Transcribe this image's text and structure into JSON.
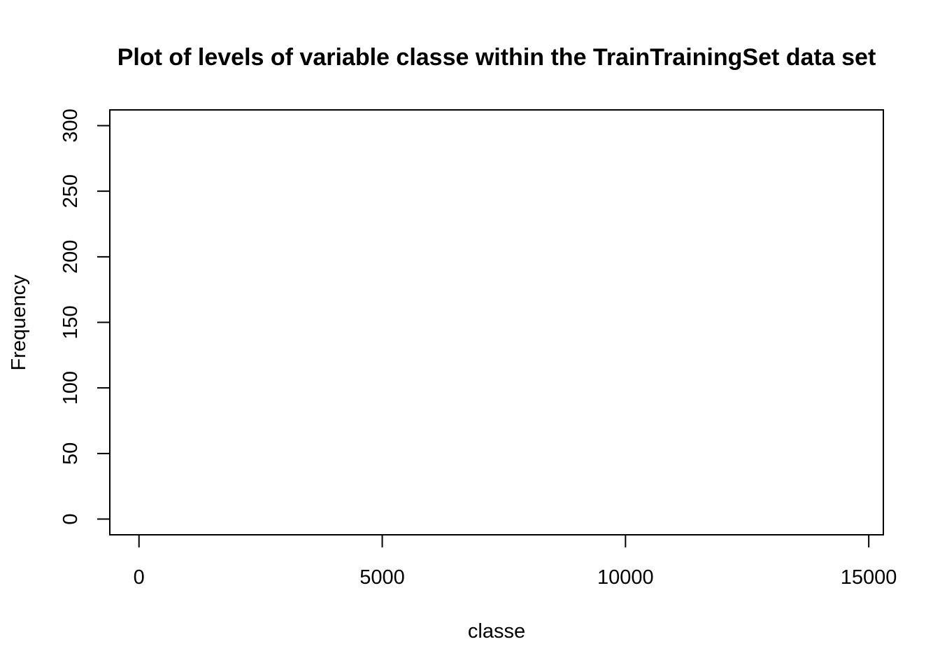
{
  "chart_data": {
    "type": "bar",
    "title": "Plot of levels of variable classe within the TrainTrainingSet data set",
    "xlabel": "classe",
    "ylabel": "Frequency",
    "xlim": [
      -600,
      15300
    ],
    "ylim": [
      -12,
      312
    ],
    "x_ticks": [
      0,
      5000,
      10000,
      15000
    ],
    "x_tick_labels": [
      "0",
      "5000",
      "10000",
      "15000"
    ],
    "y_ticks": [
      0,
      50,
      100,
      150,
      200,
      250,
      300
    ],
    "y_tick_labels": [
      "0",
      "50",
      "100",
      "150",
      "200",
      "250",
      "300"
    ],
    "categories": [],
    "values": [],
    "grid": false,
    "legend": "none"
  },
  "colors": {
    "background": "#ffffff",
    "foreground": "#000000"
  }
}
